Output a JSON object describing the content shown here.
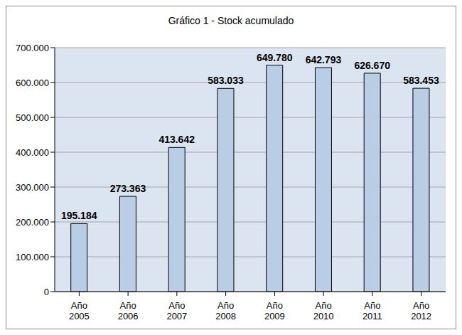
{
  "chart_data": {
    "type": "bar",
    "title": "Gráfico 1 - Stock acumulado",
    "categories": [
      "Año 2005",
      "Año 2006",
      "Año 2007",
      "Año 2008",
      "Año 2009",
      "Año 2010",
      "Año 2011",
      "Año 2012"
    ],
    "values": [
      195184,
      273363,
      413642,
      583033,
      649780,
      642793,
      626670,
      583453
    ],
    "value_labels": [
      "195.184",
      "273.363",
      "413.642",
      "583.033",
      "649.780",
      "642.793",
      "626.670",
      "583.453"
    ],
    "data_labels": true,
    "color": "#b9cde5",
    "ylim": [
      0,
      700000
    ],
    "yticks": [
      {
        "value": 0,
        "label": "0"
      },
      {
        "value": 100000,
        "label": "100.000"
      },
      {
        "value": 200000,
        "label": "200.000"
      },
      {
        "value": 300000,
        "label": "300.000"
      },
      {
        "value": 400000,
        "label": "400.000"
      },
      {
        "value": 500000,
        "label": "500.000"
      },
      {
        "value": 600000,
        "label": "600.000"
      },
      {
        "value": 700000,
        "label": "700.000"
      }
    ],
    "grid": true
  }
}
